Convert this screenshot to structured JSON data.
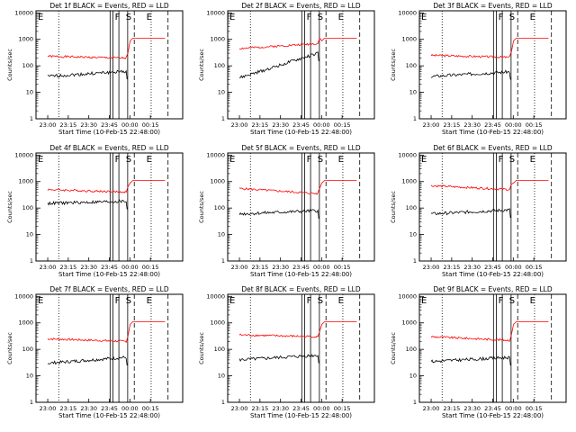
{
  "chart_data": [
    {
      "type": "line",
      "title": "Det 1f BLACK = Events, RED = LLD",
      "detector": 1,
      "black": [
        40,
        62
      ],
      "red": [
        230,
        195,
        1100
      ]
    },
    {
      "type": "line",
      "title": "Det 2f BLACK = Events, RED = LLD",
      "detector": 2,
      "black": [
        35,
        300
      ],
      "red": [
        450,
        700,
        1100
      ]
    },
    {
      "type": "line",
      "title": "Det 3f BLACK = Events, RED = LLD",
      "detector": 3,
      "black": [
        40,
        60
      ],
      "red": [
        250,
        210,
        1100
      ]
    },
    {
      "type": "line",
      "title": "Det 4f BLACK = Events, RED = LLD",
      "detector": 4,
      "black": [
        150,
        180
      ],
      "red": [
        500,
        400,
        1100
      ]
    },
    {
      "type": "line",
      "title": "Det 5f BLACK = Events, RED = LLD",
      "detector": 5,
      "black": [
        60,
        80
      ],
      "red": [
        550,
        350,
        1100
      ]
    },
    {
      "type": "line",
      "title": "Det 6f BLACK = Events, RED = LLD",
      "detector": 6,
      "black": [
        60,
        85
      ],
      "red": [
        700,
        500,
        1100
      ]
    },
    {
      "type": "line",
      "title": "Det 7f BLACK = Events, RED = LLD",
      "detector": 7,
      "black": [
        30,
        50
      ],
      "red": [
        250,
        200,
        1100
      ]
    },
    {
      "type": "line",
      "title": "Det 8f BLACK = Events, RED = LLD",
      "detector": 8,
      "black": [
        40,
        60
      ],
      "red": [
        350,
        300,
        1100
      ]
    },
    {
      "type": "line",
      "title": "Det 9f BLACK = Events, RED = LLD",
      "detector": 9,
      "black": [
        35,
        50
      ],
      "red": [
        300,
        220,
        1100
      ]
    }
  ],
  "shared": {
    "xlabel": "Start Time (10-Feb-15 22:48:00)",
    "ylabel": "Counts/sec",
    "xticks": [
      "23:00",
      "23:15",
      "23:30",
      "23:45",
      "00:00",
      "00:15"
    ],
    "yticks": [
      "1",
      "10",
      "100",
      "1000",
      "10000"
    ],
    "ylim": [
      1,
      12000
    ],
    "yscale": "log",
    "event_markers": [
      "E",
      "F",
      "S",
      "E"
    ],
    "series_colors": {
      "events": "#000000",
      "lld": "#ff0000"
    }
  }
}
